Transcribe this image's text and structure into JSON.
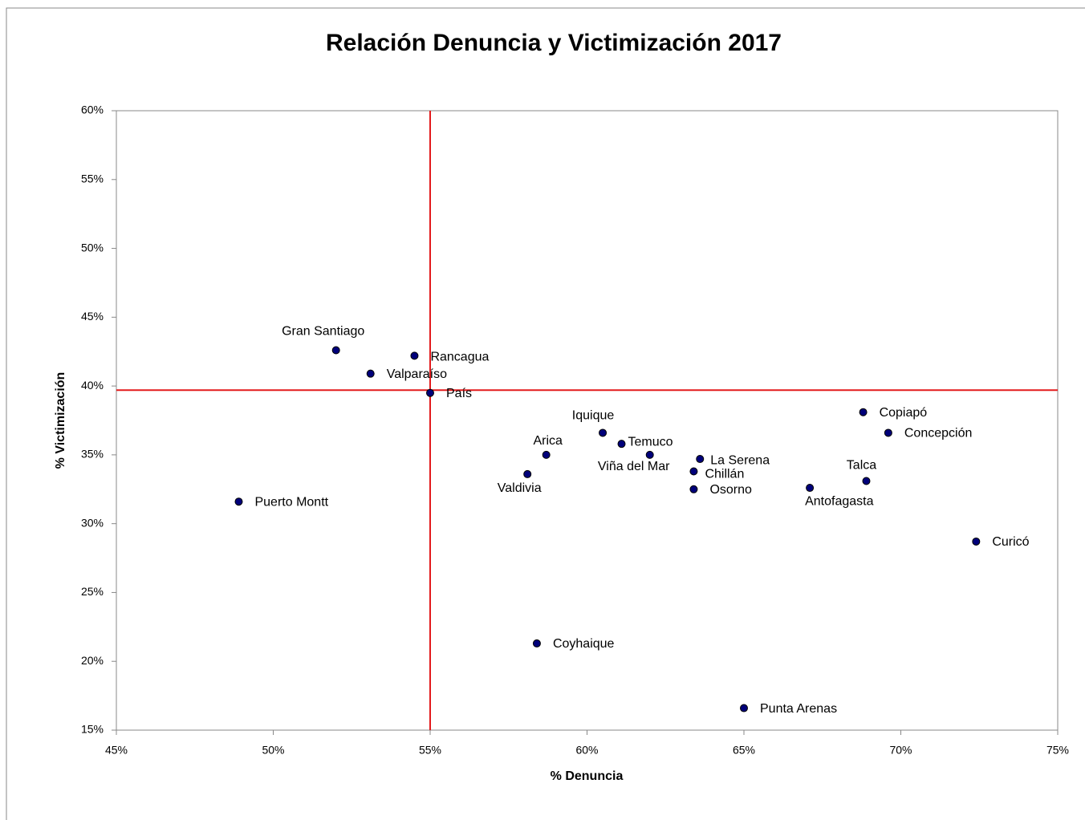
{
  "chart_data": {
    "type": "scatter",
    "title": "Relación Denuncia y Victimización 2017",
    "x_label": "% Denuncia",
    "y_label": "% Victimización",
    "color": "#00007a",
    "labels": [
      "Gran Santiago",
      "Rancagua",
      "Valparaíso",
      "País",
      "Puerto Montt",
      "Iquique",
      "Temuco",
      "Viña del Mar",
      "Arica",
      "Valdivia",
      "La Serena",
      "Chillán",
      "Osorno",
      "Antofagasta",
      "Talca",
      "Copiapó",
      "Concepción",
      "Curicó",
      "Coyhaique",
      "Punta Arenas"
    ],
    "x": [
      52.0,
      54.5,
      53.1,
      55.0,
      48.9,
      60.5,
      61.1,
      62.0,
      58.7,
      58.1,
      63.6,
      63.4,
      63.4,
      67.1,
      68.9,
      68.8,
      69.6,
      72.4,
      58.4,
      65.0
    ],
    "values": [
      42.6,
      42.2,
      40.9,
      39.5,
      31.6,
      36.6,
      35.8,
      35.0,
      35.0,
      33.6,
      34.7,
      33.8,
      32.5,
      32.6,
      33.1,
      38.1,
      36.6,
      28.7,
      21.3,
      16.6
    ],
    "reference_lines": {
      "x": 55,
      "y": 39.7,
      "color": "#e31a1c"
    },
    "xlim": [
      45,
      75
    ],
    "xticks": [
      {
        "value": 45,
        "label": "45%"
      },
      {
        "value": 50,
        "label": "50%"
      },
      {
        "value": 55,
        "label": "55%"
      },
      {
        "value": 60,
        "label": "60%"
      },
      {
        "value": 65,
        "label": "65%"
      },
      {
        "value": 70,
        "label": "70%"
      },
      {
        "value": 75,
        "label": "75%"
      }
    ],
    "ylim": [
      15,
      60
    ],
    "yticks": [
      {
        "value": 15,
        "label": "15%"
      },
      {
        "value": 20,
        "label": "20%"
      },
      {
        "value": 25,
        "label": "25%"
      },
      {
        "value": 30,
        "label": "30%"
      },
      {
        "value": 35,
        "label": "35%"
      },
      {
        "value": 40,
        "label": "40%"
      },
      {
        "value": 45,
        "label": "45%"
      },
      {
        "value": 50,
        "label": "50%"
      },
      {
        "value": 55,
        "label": "55%"
      },
      {
        "value": 60,
        "label": "60%"
      }
    ]
  }
}
